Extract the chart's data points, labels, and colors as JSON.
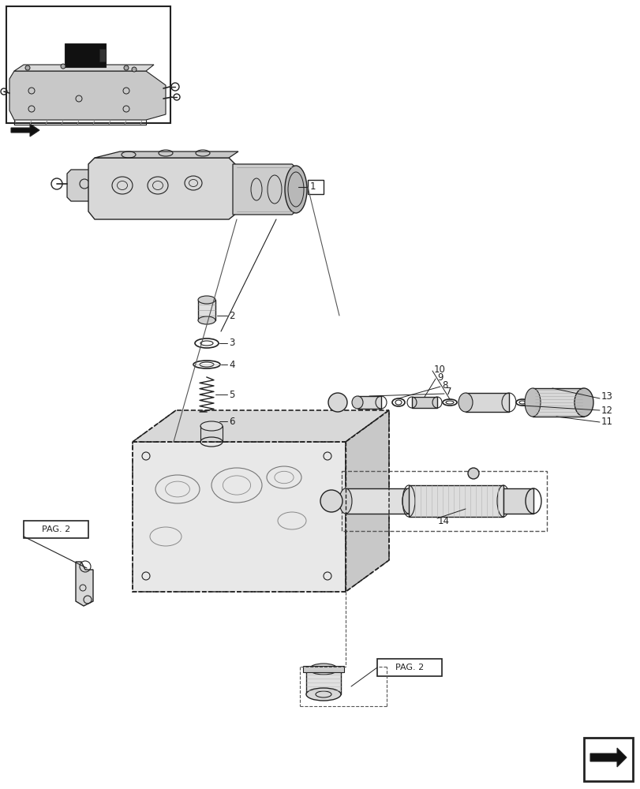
{
  "bg_color": "#ffffff",
  "line_color": "#222222",
  "fig_width": 8.12,
  "fig_height": 10.0,
  "dpi": 100
}
